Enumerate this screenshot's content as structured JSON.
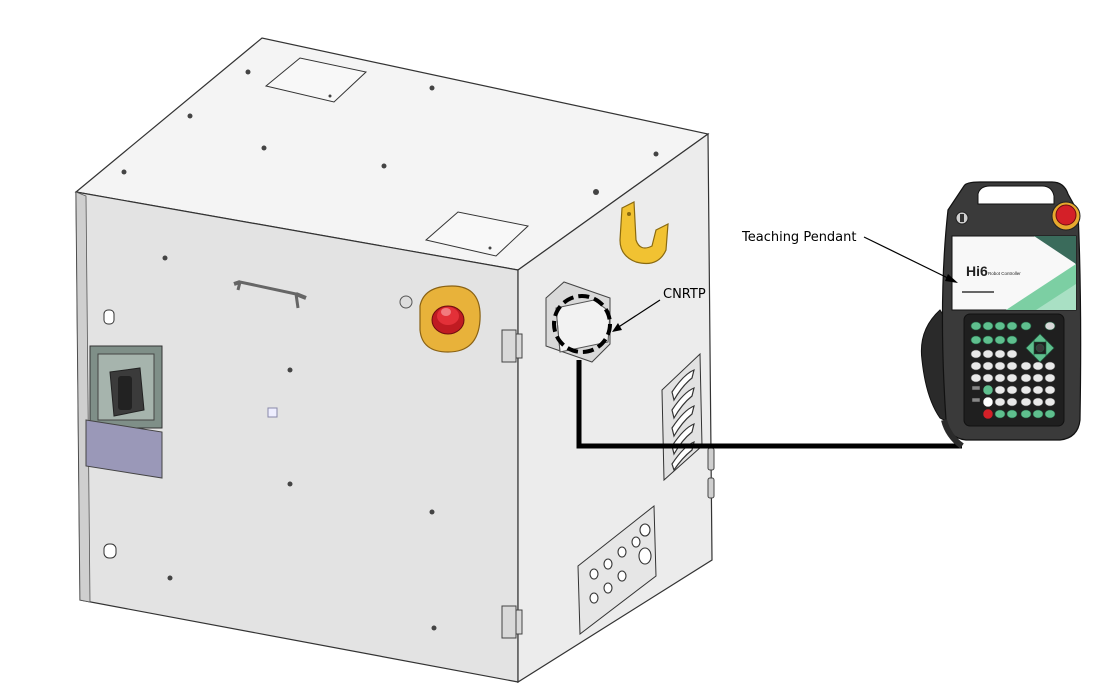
{
  "labels": {
    "teaching_pendant": "Teaching Pendant",
    "connector": "CNRTP"
  },
  "pendant": {
    "brand": "Hi6",
    "subtitle": "Robot Controller"
  },
  "colors": {
    "cabinet_front": "#e4e4e4",
    "cabinet_side": "#ebebeb",
    "cabinet_top": "#f4f4f4",
    "estop_yellow": "#e8b23a",
    "estop_red": "#d42028",
    "bracket_yellow": "#f1c232",
    "cable": "#000000",
    "pendant_body": "#3a3a3a",
    "pendant_green": "#7ccfa3",
    "key_green": "#5fbf8e"
  }
}
